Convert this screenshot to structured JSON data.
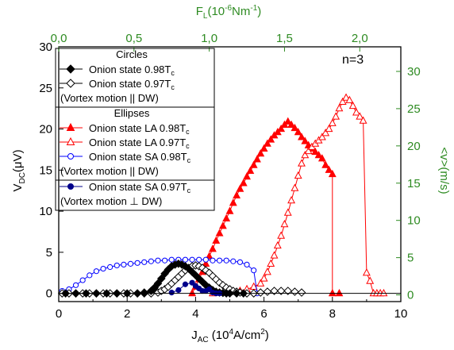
{
  "chart_data": {
    "type": "scatter",
    "annotation": "n=3",
    "x_axis": {
      "label_main": "J",
      "label_sub": "AC",
      "label_rest": " (10",
      "label_sup": "4",
      "label_end": "A/cm",
      "label_sup2": "2",
      "label_close": ")",
      "range": [
        0,
        10
      ],
      "ticks": [
        "0",
        "2",
        "4",
        "6",
        "8",
        "10"
      ]
    },
    "y_axis": {
      "label_main": "V",
      "label_sub": "DC",
      "label_rest": "(μV)",
      "range": [
        -1,
        30
      ],
      "ticks": [
        "0",
        "5",
        "10",
        "15",
        "20",
        "25",
        "30"
      ]
    },
    "x2_axis": {
      "label_main": "F",
      "label_sub": "L",
      "label_rest": "(10",
      "label_sup": "-6",
      "label_end": "Nm",
      "label_sup2": "-1",
      "label_close": ")",
      "range": [
        0,
        2.2727
      ],
      "tick_values": [
        0,
        0.5,
        1.0,
        1.5,
        2.0
      ],
      "ticks": [
        "0,0",
        "0,5",
        "1,0",
        "1,5",
        "2,0"
      ]
    },
    "y2_axis": {
      "label": "<v>(m/s)",
      "range": [
        -0.9,
        33.3
      ],
      "tick_values": [
        0,
        5,
        10,
        15,
        20,
        25,
        30
      ],
      "ticks": [
        "0",
        "5",
        "10",
        "15",
        "20",
        "25",
        "30"
      ]
    },
    "legend": {
      "placement": "top-left",
      "groups": [
        {
          "heading": "Circles",
          "items": [
            {
              "label": "Onion state 0.98T",
              "sub": "c",
              "marker": "diamond",
              "filled": true,
              "color": "#000000"
            },
            {
              "label": "Onion state 0.97T",
              "sub": "c",
              "marker": "diamond",
              "filled": false,
              "color": "#000000"
            }
          ],
          "footer": "(Vortex motion || DW)"
        },
        {
          "heading": "Ellipses",
          "items": [
            {
              "label": "Onion state LA 0.98T",
              "sub": "c",
              "marker": "triangle",
              "filled": true,
              "color": "#ff0000"
            },
            {
              "label": "Onion state LA 0.97T",
              "sub": "c",
              "marker": "triangle",
              "filled": false,
              "color": "#ff0000"
            },
            {
              "label": "Onion state SA 0.98T",
              "sub": "c",
              "marker": "circle",
              "filled": false,
              "color": "#0000ff"
            }
          ],
          "footer": "(Vortex motion || DW)"
        },
        {
          "heading": "",
          "items": [
            {
              "label": "Onion state SA 0.97T",
              "sub": "c",
              "marker": "circle",
              "filled": true,
              "color": "#00008b"
            }
          ],
          "footer": "(Vortex motion ⊥ DW)"
        }
      ]
    },
    "colors": {
      "axis": "#000000",
      "secondary_axis": "#2e8b22",
      "red": "#ff0000",
      "blue": "#0000ff",
      "navy": "#00008b"
    },
    "series": [
      {
        "name": "Onion state 0.98Tc",
        "marker": "diamond",
        "filled": true,
        "color": "#000000",
        "x": [
          0.2,
          0.5,
          0.8,
          1.1,
          1.4,
          1.7,
          2.0,
          2.3,
          2.5,
          2.7,
          2.8,
          2.9,
          3.0,
          3.1,
          3.2,
          3.3,
          3.4,
          3.5,
          3.6,
          3.7,
          3.8,
          3.9,
          4.0,
          4.1,
          4.2,
          4.3,
          4.4,
          4.5,
          4.6,
          4.7,
          4.8,
          4.9,
          5.0,
          5.2,
          5.4
        ],
        "y": [
          0,
          0,
          0,
          0,
          0,
          0,
          0,
          0,
          0.1,
          0.3,
          0.7,
          1.2,
          1.8,
          2.4,
          2.9,
          3.3,
          3.5,
          3.6,
          3.5,
          3.3,
          3.0,
          2.6,
          2.2,
          1.8,
          1.4,
          1.0,
          0.7,
          0.4,
          0.2,
          0.1,
          0.05,
          0,
          0,
          0,
          0
        ]
      },
      {
        "name": "Onion state 0.97Tc",
        "marker": "diamond",
        "filled": false,
        "color": "#000000",
        "x": [
          0.1,
          0.3,
          0.5,
          0.7,
          0.9,
          1.1,
          1.3,
          1.5,
          1.7,
          1.9,
          2.1,
          2.3,
          2.5,
          2.7,
          2.9,
          3.0,
          3.1,
          3.2,
          3.3,
          3.4,
          3.5,
          3.6,
          3.7,
          3.8,
          3.9,
          4.0,
          4.1,
          4.2,
          4.3,
          4.4,
          4.5,
          4.6,
          4.7,
          4.8,
          4.9,
          5.0,
          5.1,
          5.2,
          5.3,
          5.5,
          5.7,
          5.9,
          6.1,
          6.3,
          6.5,
          6.7,
          6.9,
          7.1
        ],
        "y": [
          0,
          0,
          0,
          0,
          0,
          0,
          0,
          0,
          0,
          0,
          0,
          0,
          0,
          0,
          0.1,
          0.3,
          0.5,
          0.8,
          1.2,
          1.6,
          2.0,
          2.4,
          2.8,
          3.1,
          3.3,
          3.4,
          3.3,
          3.1,
          2.8,
          2.5,
          2.1,
          1.7,
          1.3,
          1.0,
          0.7,
          0.5,
          0.3,
          0.2,
          0.1,
          0,
          0,
          0.1,
          0.2,
          0.3,
          0.3,
          0.3,
          0.2,
          0.1
        ]
      },
      {
        "name": "Onion state LA 0.98Tc",
        "marker": "triangle",
        "filled": true,
        "color": "#ff0000",
        "x": [
          3.9,
          4.0,
          4.1,
          4.2,
          4.3,
          4.4,
          4.5,
          4.6,
          4.7,
          4.8,
          4.9,
          5.0,
          5.1,
          5.2,
          5.3,
          5.4,
          5.5,
          5.6,
          5.7,
          5.8,
          5.9,
          6.0,
          6.1,
          6.2,
          6.3,
          6.4,
          6.5,
          6.6,
          6.7,
          6.8,
          6.9,
          7.0,
          7.1,
          7.2,
          7.3,
          7.4,
          7.5,
          7.6,
          7.7,
          7.8,
          7.9,
          8.0,
          8.0,
          8.2
        ],
        "y": [
          0,
          0.8,
          1.7,
          2.6,
          3.6,
          4.5,
          5.4,
          6.4,
          7.3,
          8.2,
          9.1,
          10.0,
          11.0,
          11.9,
          12.7,
          13.4,
          14.2,
          14.9,
          15.6,
          16.3,
          17.0,
          17.6,
          18.2,
          18.7,
          19.2,
          19.6,
          20.0,
          20.5,
          20.9,
          20.5,
          20.1,
          19.6,
          19.0,
          18.5,
          18.0,
          17.6,
          17.2,
          16.8,
          16.4,
          15.6,
          15.0,
          14.5,
          0,
          0
        ]
      },
      {
        "name": "Onion state LA 0.97Tc",
        "marker": "triangle",
        "filled": false,
        "color": "#ff0000",
        "x": [
          4.5,
          4.7,
          4.9,
          5.1,
          5.3,
          5.5,
          5.7,
          5.9,
          6.0,
          6.1,
          6.2,
          6.3,
          6.4,
          6.5,
          6.6,
          6.7,
          6.8,
          6.9,
          7.0,
          7.1,
          7.2,
          7.3,
          7.4,
          7.5,
          7.6,
          7.7,
          7.8,
          7.9,
          8.0,
          8.1,
          8.2,
          8.3,
          8.4,
          8.5,
          8.6,
          8.7,
          8.8,
          8.9,
          9.0,
          9.1,
          9.2,
          9.3,
          9.4,
          9.5
        ],
        "y": [
          0,
          0.1,
          0.1,
          0.2,
          0.3,
          0.5,
          0.8,
          1.2,
          1.8,
          2.6,
          3.6,
          4.6,
          5.8,
          7.0,
          8.4,
          9.8,
          11.3,
          12.8,
          14.3,
          15.8,
          16.8,
          17.3,
          17.8,
          18.2,
          18.6,
          19.0,
          19.5,
          20.0,
          20.7,
          21.5,
          22.5,
          23.3,
          23.8,
          23.5,
          22.8,
          22.0,
          21.5,
          21.0,
          2.5,
          1.5,
          0,
          0,
          0,
          0
        ]
      },
      {
        "name": "Onion state SA 0.98Tc",
        "marker": "circle",
        "filled": false,
        "color": "#0000ff",
        "x": [
          0.1,
          0.3,
          0.5,
          0.7,
          0.9,
          1.1,
          1.3,
          1.5,
          1.7,
          1.9,
          2.1,
          2.3,
          2.5,
          2.7,
          2.9,
          3.1,
          3.3,
          3.5,
          3.7,
          3.9,
          4.1,
          4.3,
          4.5,
          4.7,
          4.9,
          5.1,
          5.3,
          5.5,
          5.7,
          5.8
        ],
        "y": [
          0.3,
          0.5,
          1.0,
          1.6,
          2.2,
          2.7,
          3.0,
          3.2,
          3.4,
          3.5,
          3.6,
          3.7,
          3.8,
          3.9,
          4.0,
          4.0,
          4.1,
          4.1,
          4.1,
          4.1,
          4.1,
          4.1,
          4.0,
          4.0,
          4.0,
          3.9,
          3.8,
          3.5,
          2.8,
          0
        ]
      },
      {
        "name": "Onion state SA 0.97Tc",
        "marker": "circle",
        "filled": true,
        "color": "#00008b",
        "x": [
          3.3,
          3.5,
          3.7,
          3.9,
          4.0,
          4.1,
          4.2,
          4.3,
          4.4,
          4.5,
          4.6,
          4.7
        ],
        "y": [
          0.1,
          0.4,
          1.1,
          1.3,
          0.9,
          0.6,
          0.3,
          0.3,
          0.5,
          0.1,
          0,
          0
        ]
      }
    ]
  }
}
